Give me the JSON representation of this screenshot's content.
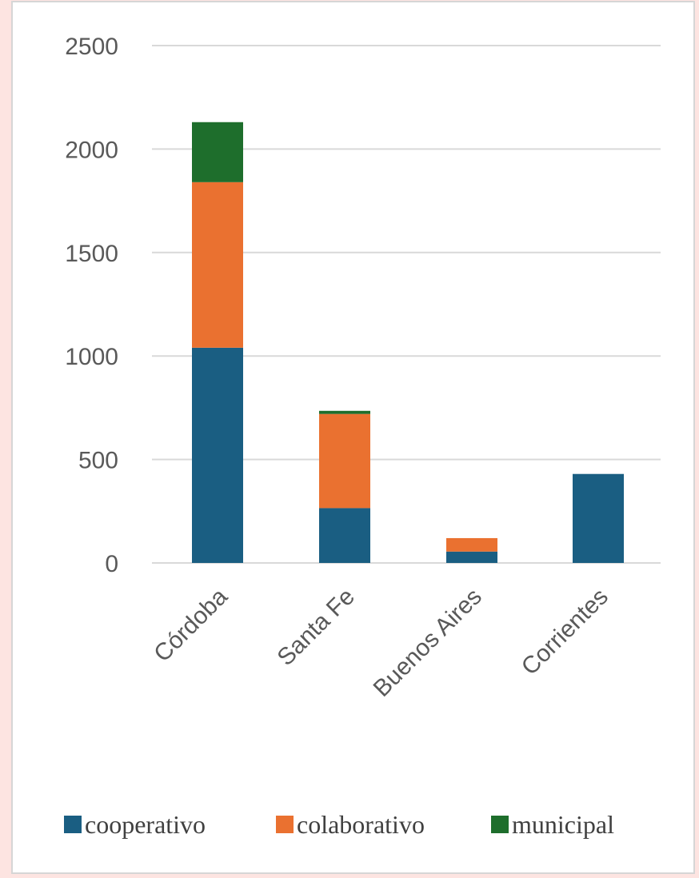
{
  "chart_data": {
    "type": "bar",
    "stacked": true,
    "categories": [
      "Córdoba",
      "Santa Fe",
      "Buenos Aires",
      "Corrientes"
    ],
    "series": [
      {
        "name": "cooperativo",
        "color": "#1a5e82",
        "values": [
          1040,
          265,
          55,
          430
        ]
      },
      {
        "name": "colaborativo",
        "color": "#ea7130",
        "values": [
          800,
          455,
          65,
          0
        ]
      },
      {
        "name": "municipal",
        "color": "#1e6e2c",
        "values": [
          290,
          15,
          0,
          0
        ]
      }
    ],
    "title": "",
    "xlabel": "",
    "ylabel": "",
    "ylim": [
      0,
      2500
    ],
    "yticks": [
      0,
      500,
      1000,
      1500,
      2000,
      2500
    ],
    "grid": true,
    "legend_position": "bottom",
    "colors": {
      "gridline": "#d9d9d9",
      "tick_text": "#595959",
      "background": "#ffffff",
      "page_background": "#fde4e1"
    }
  }
}
